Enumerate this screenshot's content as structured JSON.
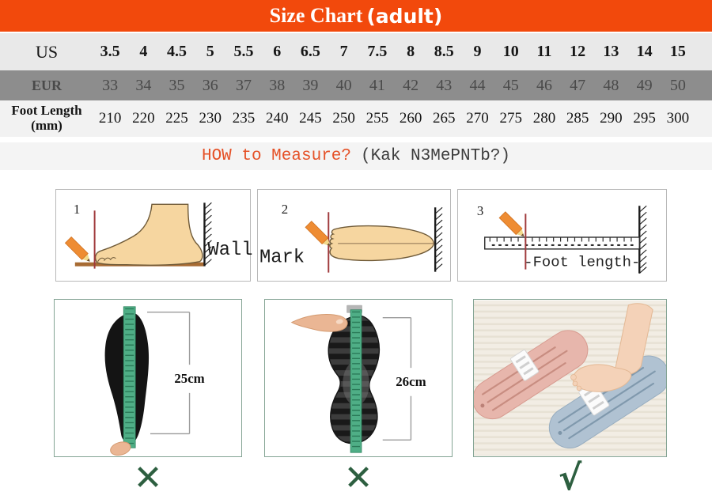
{
  "banner": {
    "title": "Size Chart",
    "subtitle": "(adult)"
  },
  "size_table": {
    "rows": [
      {
        "key": "us",
        "label": "US",
        "values": [
          "3.5",
          "4",
          "4.5",
          "5",
          "5.5",
          "6",
          "6.5",
          "7",
          "7.5",
          "8",
          "8.5",
          "9",
          "10",
          "11",
          "12",
          "13",
          "14",
          "15"
        ]
      },
      {
        "key": "eur",
        "label": "EUR",
        "values": [
          "33",
          "34",
          "35",
          "36",
          "37",
          "38",
          "39",
          "40",
          "41",
          "42",
          "43",
          "44",
          "45",
          "46",
          "47",
          "48",
          "49",
          "50"
        ]
      },
      {
        "key": "foot-length",
        "label": "Foot Length",
        "label2": "(mm)",
        "values": [
          "210",
          "220",
          "225",
          "230",
          "235",
          "240",
          "245",
          "250",
          "255",
          "260",
          "265",
          "270",
          "275",
          "280",
          "285",
          "290",
          "295",
          "300"
        ]
      }
    ]
  },
  "how_to_measure": {
    "heading": "HOW to Measure?",
    "translation": "(Kak N3MePNTb?)"
  },
  "steps": [
    {
      "number": "1",
      "caption": "Wall",
      "icon": "foot-side-view-against-wall"
    },
    {
      "number": "2",
      "caption": "Mark",
      "icon": "foot-top-view-pencil-mark"
    },
    {
      "number": "3",
      "caption": "-Foot length-",
      "icon": "ruler-measuring-foot-length"
    }
  ],
  "examples": [
    {
      "measurement": "25cm",
      "verdict": "✕",
      "icon": "insole-with-measuring-tape"
    },
    {
      "measurement": "26cm",
      "verdict": "✕",
      "icon": "shoe-outsole-with-measuring-tape"
    },
    {
      "measurement": "",
      "verdict": "√",
      "icon": "foot-measuring-devices-photo"
    }
  ],
  "colors": {
    "banner_bg": "#f2490c",
    "us_row_bg": "#e9e9e9",
    "eur_row_bg": "#8d8d8d",
    "foot_row_bg": "#f2f2f2",
    "band_bg": "#f4f4f4",
    "accent_red": "#e55127",
    "mark_green": "#2d5f40",
    "tape_green": "#4fae86",
    "pencil_orange": "#ee8c33"
  }
}
